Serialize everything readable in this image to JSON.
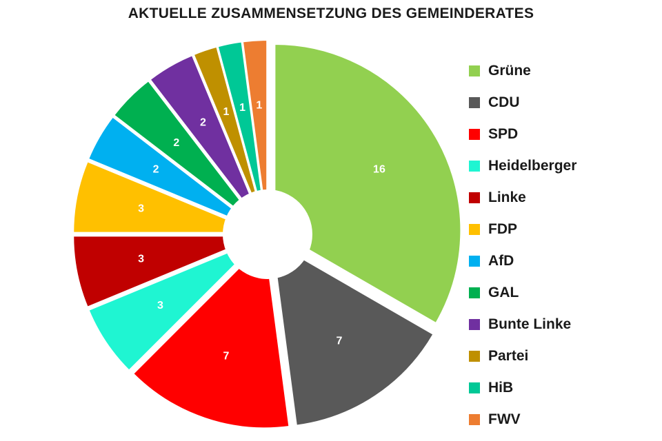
{
  "chart_data": {
    "type": "pie",
    "title": "AKTUELLE ZUSAMMENSETZUNG DES GEMEINDERATES",
    "categories": [
      "Grüne",
      "CDU",
      "SPD",
      "Heidelberger",
      "Linke",
      "FDP",
      "AfD",
      "GAL",
      "Bunte Linke",
      "Partei",
      "HiB",
      "FWV"
    ],
    "values": [
      16,
      7,
      7,
      3,
      3,
      3,
      2,
      2,
      2,
      1,
      1,
      1
    ],
    "colors": [
      "#92d050",
      "#595959",
      "#ff0000",
      "#1ff5d2",
      "#c00000",
      "#ffc000",
      "#00b0f0",
      "#00b050",
      "#7030a0",
      "#bf9000",
      "#00c896",
      "#ed7d31"
    ],
    "style": "exploded doughnut",
    "legend_position": "right"
  }
}
